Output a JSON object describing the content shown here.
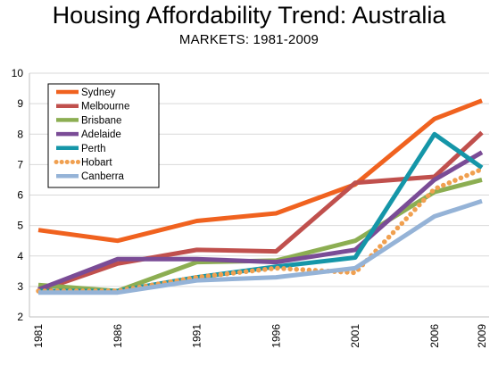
{
  "chart_data": {
    "type": "line",
    "title": "Housing Affordability Trend: Australia",
    "subtitle": "MARKETS: 1981-2009",
    "x": [
      1981,
      1986,
      1991,
      1996,
      2001,
      2006,
      2009
    ],
    "x_tick_labels": [
      "1981",
      "1986",
      "1991",
      "1996",
      "2001",
      "2006",
      "2009"
    ],
    "ylim": [
      2,
      10
    ],
    "y_ticks": [
      2,
      3,
      4,
      5,
      6,
      7,
      8,
      9,
      10
    ],
    "grid": true,
    "legend_position": "top-left",
    "series": [
      {
        "name": "Sydney",
        "color": "#F0621F",
        "style": "solid",
        "values": [
          4.85,
          4.5,
          5.15,
          5.4,
          6.35,
          8.5,
          9.1
        ]
      },
      {
        "name": "Melbourne",
        "color": "#C0504D",
        "style": "solid",
        "values": [
          2.85,
          3.75,
          4.2,
          4.15,
          6.4,
          6.6,
          8.05
        ]
      },
      {
        "name": "Brisbane",
        "color": "#8CAE52",
        "style": "solid",
        "values": [
          3.05,
          2.85,
          3.8,
          3.85,
          4.5,
          6.1,
          6.5
        ]
      },
      {
        "name": "Adelaide",
        "color": "#7A4C96",
        "style": "solid",
        "values": [
          2.9,
          3.9,
          3.9,
          3.8,
          4.2,
          6.5,
          7.4
        ]
      },
      {
        "name": "Perth",
        "color": "#1596A8",
        "style": "solid",
        "values": [
          2.85,
          2.85,
          3.3,
          3.65,
          3.95,
          8.0,
          6.9
        ]
      },
      {
        "name": "Hobart",
        "color": "#F0A050",
        "style": "dotted",
        "values": [
          2.85,
          2.85,
          3.3,
          3.6,
          3.45,
          6.2,
          6.85
        ]
      },
      {
        "name": "Canberra",
        "color": "#95B3D7",
        "style": "solid",
        "values": [
          2.8,
          2.8,
          3.2,
          3.3,
          3.6,
          5.3,
          5.8
        ]
      }
    ]
  }
}
